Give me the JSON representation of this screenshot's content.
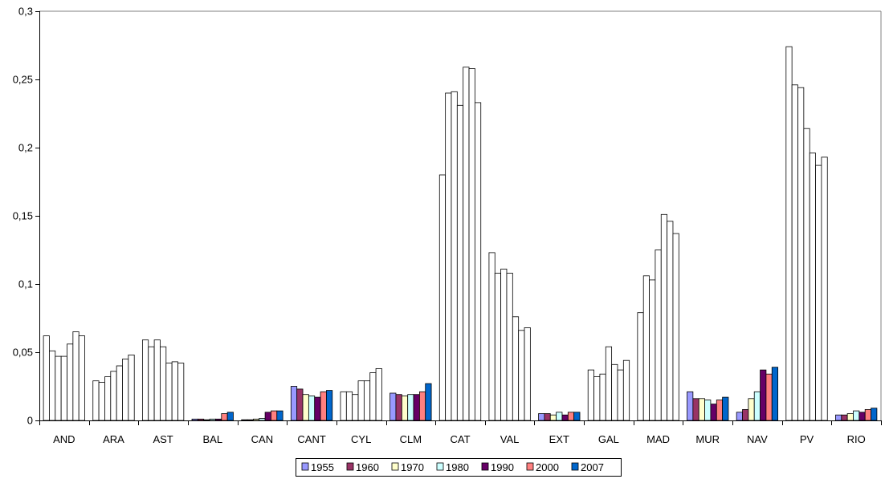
{
  "chart_data": {
    "type": "bar",
    "title": "",
    "xlabel": "",
    "ylabel": "",
    "ylim": [
      0,
      0.3
    ],
    "yticks": [
      "0",
      "0,05",
      "0,1",
      "0,15",
      "0,2",
      "0,25",
      "0,3"
    ],
    "grid": false,
    "legend_position": "bottom",
    "categories": [
      "AND",
      "ARA",
      "AST",
      "BAL",
      "CAN",
      "CANT",
      "CYL",
      "CLM",
      "CAT",
      "VAL",
      "EXT",
      "GAL",
      "MAD",
      "MUR",
      "NAV",
      "PV",
      "RIO"
    ],
    "series": [
      {
        "name": "1955",
        "color": "#9999ff",
        "values": [
          0.062,
          0.029,
          0.059,
          0.001,
          0.0005,
          0.025,
          0.021,
          0.02,
          0.18,
          0.123,
          0.005,
          0.037,
          0.079,
          0.021,
          0.006,
          0.274,
          0.004
        ]
      },
      {
        "name": "1960",
        "color": "#993366",
        "values": [
          0.051,
          0.028,
          0.054,
          0.001,
          0.0005,
          0.023,
          0.021,
          0.019,
          0.24,
          0.108,
          0.005,
          0.032,
          0.106,
          0.016,
          0.008,
          0.246,
          0.004
        ]
      },
      {
        "name": "1970",
        "color": "#ffffcc",
        "values": [
          0.047,
          0.032,
          0.059,
          0.0005,
          0.001,
          0.019,
          0.019,
          0.018,
          0.241,
          0.111,
          0.004,
          0.034,
          0.103,
          0.016,
          0.016,
          0.244,
          0.005
        ]
      },
      {
        "name": "1980",
        "color": "#ccffff",
        "values": [
          0.047,
          0.036,
          0.054,
          0.001,
          0.0015,
          0.018,
          0.029,
          0.019,
          0.231,
          0.108,
          0.006,
          0.054,
          0.125,
          0.015,
          0.021,
          0.214,
          0.007
        ]
      },
      {
        "name": "1990",
        "color": "#660066",
        "values": [
          0.056,
          0.04,
          0.042,
          0.001,
          0.006,
          0.017,
          0.029,
          0.019,
          0.259,
          0.076,
          0.004,
          0.041,
          0.151,
          0.012,
          0.037,
          0.196,
          0.006
        ]
      },
      {
        "name": "2000",
        "color": "#ff8080",
        "values": [
          0.065,
          0.045,
          0.043,
          0.005,
          0.007,
          0.021,
          0.035,
          0.021,
          0.258,
          0.066,
          0.006,
          0.037,
          0.146,
          0.015,
          0.034,
          0.187,
          0.008
        ]
      },
      {
        "name": "2007",
        "color": "#0066cc",
        "values": [
          0.062,
          0.048,
          0.042,
          0.006,
          0.007,
          0.022,
          0.038,
          0.027,
          0.233,
          0.068,
          0.006,
          0.044,
          0.137,
          0.017,
          0.039,
          0.193,
          0.009
        ]
      }
    ],
    "filled_categories": [
      "BAL",
      "CAN",
      "CANT",
      "CLM",
      "EXT",
      "MUR",
      "NAV",
      "RIO"
    ]
  }
}
